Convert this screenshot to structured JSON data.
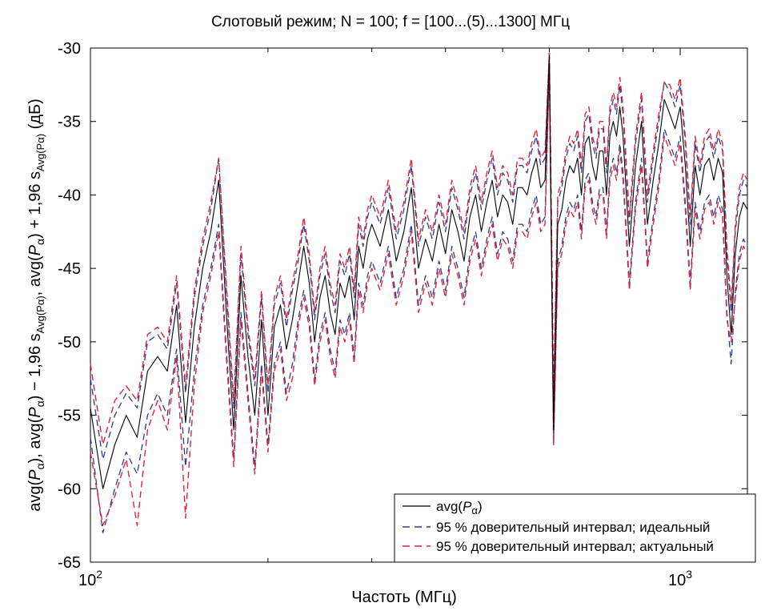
{
  "chart_data": {
    "type": "line",
    "title": "Слотовый режим; N = 100; f = [100...(5)...1300] МГц",
    "xlabel": "Частоть (МГц)",
    "ylabel_text": "avg(Pα), avg(Pα) − 1,96 sAvg(Pα), avg(Pα) + 1,96 sAvg(Pα) (дБ)",
    "ylabel": {
      "p1": "avg(",
      "p2": "P",
      "p3": "α",
      "p4": "), avg(",
      "p5": "P",
      "p6": "α",
      "p7": ") − 1,96 s",
      "p8": "Avg(Pα)",
      "p9": ", avg(",
      "p10": "P",
      "p11": "α",
      "p12": ") + 1,96 s",
      "p13": "Avg(Pα)",
      "p14": " (дБ)"
    },
    "x_scale": "log",
    "xlim": [
      100,
      1300
    ],
    "ylim": [
      -65,
      -30
    ],
    "x_ticks": [
      100,
      1000
    ],
    "x_tick_labels": [
      {
        "base": "10",
        "exp": "2"
      },
      {
        "base": "10",
        "exp": "3"
      }
    ],
    "y_ticks": [
      -30,
      -35,
      -40,
      -45,
      -50,
      -55,
      -60,
      -65
    ],
    "y_tick_labels": [
      "-30",
      "-35",
      "-40",
      "-45",
      "-50",
      "-55",
      "-60",
      "-65"
    ],
    "grid": false,
    "legend_position": "bottom-right",
    "legend": {
      "avg_label": {
        "main": "avg(",
        "italic": "P",
        "sub": "α",
        "close": ")"
      },
      "ideal_label": "95 % доверительный интервал; идеальный",
      "actual_label": "95 % доверительный интервал; актуальный"
    },
    "series_styles": [
      {
        "name": "avg",
        "color": "#000000",
        "dash": "solid"
      },
      {
        "name": "ideal",
        "color": "#2b3a8f",
        "dash": "dashed"
      },
      {
        "name": "actual",
        "color": "#e0213f",
        "dash": "dashed"
      }
    ],
    "x": [
      100,
      105,
      110,
      115,
      120,
      125,
      130,
      135,
      140,
      145,
      150,
      155,
      160,
      165,
      170,
      175,
      180,
      185,
      190,
      195,
      200,
      205,
      210,
      215,
      220,
      225,
      230,
      235,
      240,
      245,
      250,
      255,
      260,
      265,
      270,
      275,
      280,
      285,
      290,
      295,
      300,
      310,
      320,
      330,
      340,
      350,
      360,
      370,
      380,
      390,
      400,
      410,
      420,
      430,
      440,
      450,
      460,
      470,
      480,
      490,
      500,
      510,
      520,
      530,
      540,
      550,
      560,
      570,
      580,
      590,
      600,
      610,
      620,
      630,
      640,
      650,
      660,
      670,
      680,
      690,
      700,
      710,
      720,
      730,
      740,
      750,
      760,
      770,
      780,
      790,
      800,
      820,
      840,
      860,
      880,
      900,
      920,
      940,
      960,
      980,
      1000,
      1020,
      1040,
      1060,
      1080,
      1100,
      1120,
      1140,
      1160,
      1180,
      1200,
      1220,
      1240,
      1260,
      1280,
      1300
    ],
    "avg": [
      -54.5,
      -60,
      -57,
      -55,
      -56.5,
      -52,
      -51,
      -52,
      -47.5,
      -55.5,
      -49,
      -45,
      -42.5,
      -39,
      -48,
      -56,
      -45.5,
      -51,
      -55,
      -48.5,
      -55,
      -49,
      -47.5,
      -50.5,
      -48.5,
      -46,
      -43.5,
      -46,
      -50,
      -47,
      -45.5,
      -48,
      -49.5,
      -46,
      -47,
      -45.5,
      -48.5,
      -43.5,
      -45,
      -43,
      -42,
      -43.5,
      -41,
      -44.5,
      -42.5,
      -39.5,
      -45,
      -43,
      -44.5,
      -42,
      -44,
      -41,
      -42.5,
      -44.5,
      -41.5,
      -40,
      -42.5,
      -40.5,
      -39,
      -41.5,
      -40,
      -40.5,
      -42,
      -39.5,
      -39.5,
      -40,
      -38.5,
      -37.5,
      -39.5,
      -39,
      -30.5,
      -56,
      -42,
      -41,
      -39,
      -38,
      -38.5,
      -37.5,
      -40,
      -36.5,
      -36,
      -38,
      -39,
      -37,
      -37,
      -40,
      -36,
      -35,
      -36,
      -34,
      -36,
      -43.5,
      -38,
      -35,
      -42,
      -39,
      -36.5,
      -33.5,
      -34.5,
      -35.5,
      -34,
      -38,
      -43.5,
      -38,
      -40,
      -38,
      -37.5,
      -39,
      -37.5,
      -38.5,
      -45.5,
      -49.5,
      -44,
      -41.5,
      -40.5,
      -41
    ],
    "ideal_upper": [
      -52.5,
      -58,
      -55,
      -53.5,
      -54.5,
      -50,
      -49.5,
      -50.5,
      -46,
      -53.5,
      -47,
      -43.5,
      -41,
      -37.5,
      -46.5,
      -54.5,
      -44,
      -49.5,
      -53,
      -47,
      -53.5,
      -47.5,
      -46,
      -49,
      -46.5,
      -44.5,
      -42,
      -44.5,
      -48.5,
      -45.5,
      -44,
      -46.5,
      -48,
      -44.5,
      -45.5,
      -44,
      -47,
      -42,
      -43.5,
      -41.5,
      -40.5,
      -42,
      -39.5,
      -43,
      -41,
      -38,
      -43.5,
      -41.5,
      -43,
      -40.5,
      -42.5,
      -39.5,
      -41,
      -43,
      -40,
      -38.5,
      -41,
      -39,
      -37.5,
      -40,
      -38.5,
      -39,
      -40.5,
      -38,
      -38,
      -38.5,
      -37,
      -36,
      -38,
      -37.5,
      -30.2,
      -54,
      -40.5,
      -39.5,
      -37.5,
      -36.5,
      -37,
      -36,
      -38.5,
      -35,
      -34.5,
      -36.5,
      -37.5,
      -35.5,
      -35.5,
      -38.5,
      -34.5,
      -33.5,
      -34.5,
      -32.5,
      -34.5,
      -42,
      -36.5,
      -33.5,
      -40.5,
      -37.5,
      -35,
      -32.3,
      -33,
      -34,
      -32.5,
      -36.5,
      -42,
      -36.5,
      -38.5,
      -36.5,
      -36,
      -37.5,
      -36,
      -37,
      -44,
      -48,
      -42.5,
      -40,
      -39,
      -39.5
    ],
    "ideal_lower": [
      -56.5,
      -63,
      -60,
      -57.5,
      -59,
      -55,
      -53.5,
      -55,
      -50.5,
      -58.5,
      -52,
      -47.5,
      -45,
      -42,
      -50.5,
      -58,
      -48,
      -53.5,
      -58.5,
      -51.5,
      -57,
      -51.5,
      -50,
      -53.5,
      -51.5,
      -48.5,
      -46.5,
      -48.5,
      -52.5,
      -49.5,
      -48,
      -50.5,
      -52,
      -48.5,
      -49.5,
      -48,
      -51,
      -46,
      -47.5,
      -45.5,
      -44.5,
      -46,
      -43.5,
      -47,
      -45,
      -42,
      -47.5,
      -45.5,
      -47,
      -44.5,
      -46.5,
      -43.5,
      -45,
      -47,
      -44,
      -42.5,
      -45,
      -43,
      -41.5,
      -44,
      -42.5,
      -43,
      -44.5,
      -42,
      -42,
      -42.5,
      -41,
      -40,
      -42,
      -41.5,
      -31.5,
      -57,
      -44.5,
      -43.5,
      -41.5,
      -40.5,
      -41,
      -40,
      -42.5,
      -39,
      -38.5,
      -40.5,
      -41.5,
      -39.5,
      -39.5,
      -42.5,
      -38.5,
      -37.5,
      -38.5,
      -36.5,
      -38.5,
      -46,
      -40.5,
      -37.5,
      -44.5,
      -41.5,
      -39,
      -35.5,
      -36.5,
      -37.5,
      -36,
      -40.5,
      -46,
      -40.5,
      -42.5,
      -40.5,
      -40,
      -41.5,
      -40,
      -41,
      -48,
      -51.5,
      -46.5,
      -44,
      -43,
      -43.5
    ],
    "actual_upper": [
      -51.5,
      -57,
      -54,
      -53,
      -54,
      -49.5,
      -49,
      -50,
      -45.5,
      -53,
      -46.5,
      -43,
      -40.5,
      -37.5,
      -46,
      -54,
      -43.5,
      -49,
      -52.5,
      -46.5,
      -53,
      -47,
      -45.5,
      -48.5,
      -46,
      -44,
      -41.5,
      -44,
      -48,
      -45,
      -43.5,
      -46,
      -47.5,
      -44,
      -45,
      -43.5,
      -46.5,
      -41.5,
      -43,
      -41,
      -40,
      -41.5,
      -39,
      -42.5,
      -40.5,
      -37.5,
      -43,
      -41,
      -42.5,
      -40,
      -42,
      -39,
      -40.5,
      -42.5,
      -39.5,
      -38,
      -40.5,
      -38.5,
      -37,
      -39.5,
      -38,
      -38.5,
      -40,
      -37.5,
      -37.5,
      -38,
      -36.5,
      -35.5,
      -37.5,
      -37,
      -30.3,
      -53.5,
      -40,
      -39,
      -37,
      -36,
      -36.5,
      -35.5,
      -38,
      -34.5,
      -34,
      -36,
      -37,
      -35,
      -35,
      -38,
      -34,
      -33,
      -34,
      -32,
      -34,
      -41.5,
      -36,
      -33,
      -40,
      -37,
      -34.5,
      -32.3,
      -32.5,
      -33.5,
      -32,
      -36,
      -41.5,
      -36,
      -38,
      -36,
      -35.5,
      -37,
      -35.5,
      -36.5,
      -43.5,
      -47.5,
      -42,
      -39.5,
      -38.5,
      -39
    ],
    "actual_lower": [
      -57.5,
      -62.5,
      -60.5,
      -58,
      -62.5,
      -56,
      -54,
      -56,
      -51,
      -62,
      -53,
      -48,
      -45.5,
      -42.5,
      -51,
      -58.5,
      -48.5,
      -54,
      -59,
      -52,
      -57.5,
      -52,
      -50.5,
      -54,
      -52.5,
      -49,
      -47,
      -49,
      -53,
      -50,
      -48.5,
      -51,
      -52.5,
      -49,
      -50,
      -48.5,
      -51.5,
      -46.5,
      -48,
      -46,
      -45,
      -46.5,
      -44,
      -47.5,
      -45.5,
      -42.5,
      -48,
      -46,
      -47.5,
      -45,
      -47,
      -44,
      -45.5,
      -47.5,
      -44.5,
      -43,
      -45.5,
      -43.5,
      -42,
      -44.5,
      -43,
      -43.5,
      -45,
      -42.5,
      -42.5,
      -43,
      -41.5,
      -40.5,
      -42.5,
      -42,
      -31.5,
      -57,
      -45,
      -44,
      -42,
      -41,
      -41.5,
      -40.5,
      -43,
      -39.5,
      -39,
      -41,
      -42,
      -40,
      -40,
      -43,
      -39,
      -38,
      -39,
      -37,
      -39,
      -46.5,
      -41,
      -38,
      -45,
      -42,
      -39.5,
      -36,
      -37,
      -38,
      -36.5,
      -41,
      -46.5,
      -41,
      -43,
      -41,
      -40.5,
      -42,
      -40.5,
      -41.5,
      -48.5,
      -50,
      -47,
      -44.5,
      -43.5,
      -44
    ]
  }
}
